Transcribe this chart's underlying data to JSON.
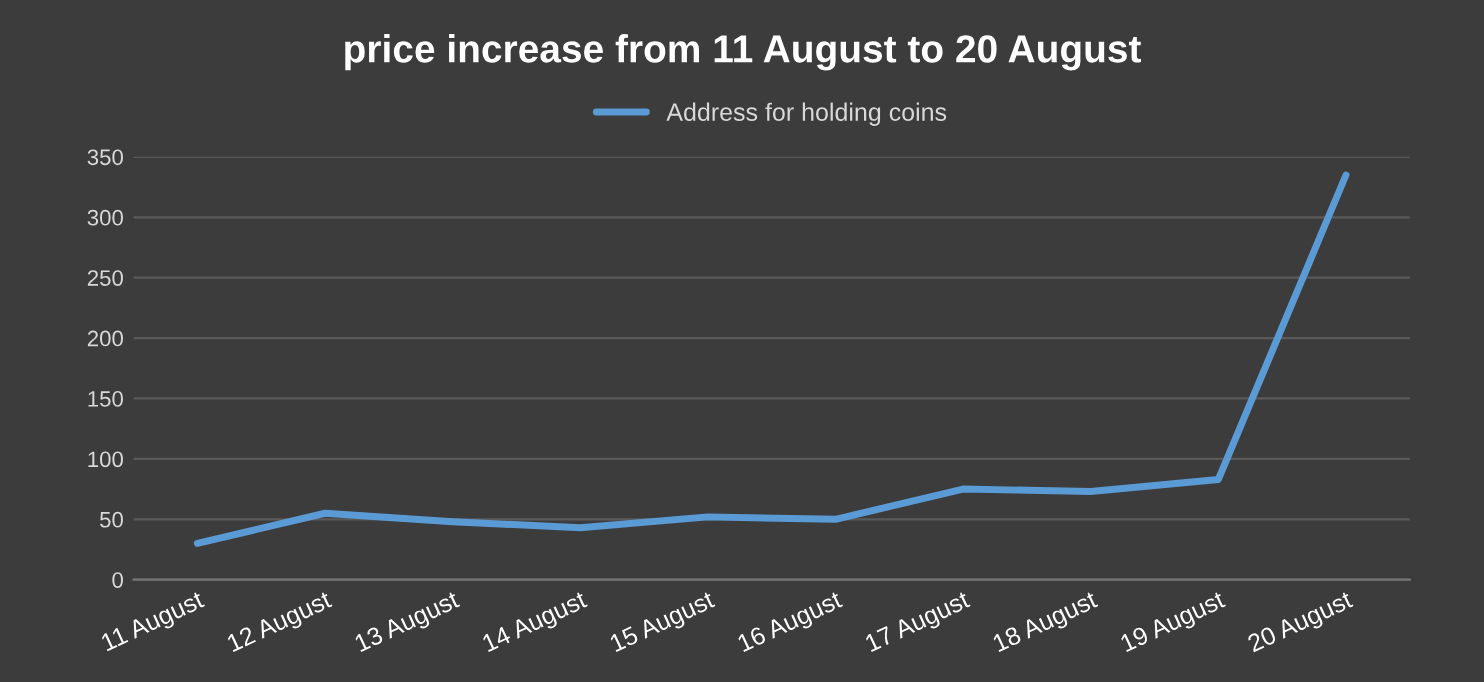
{
  "chart_data": {
    "type": "line",
    "title": "price increase from 11 August to 20 August",
    "categories": [
      "11 August",
      "12 August",
      "13 August",
      "14 August",
      "15 August",
      "16 August",
      "17 August",
      "18 August",
      "19 August",
      "20 August"
    ],
    "series": [
      {
        "name": "Address for holding coins",
        "color": "#5b9bd5",
        "values": [
          30,
          55,
          48,
          43,
          52,
          50,
          75,
          73,
          83,
          335
        ]
      }
    ],
    "ylim": [
      0,
      350
    ],
    "yticks": [
      0,
      50,
      100,
      150,
      200,
      250,
      300,
      350
    ],
    "grid": "y",
    "legend": "top",
    "marker": "none",
    "line_style": "solid"
  }
}
